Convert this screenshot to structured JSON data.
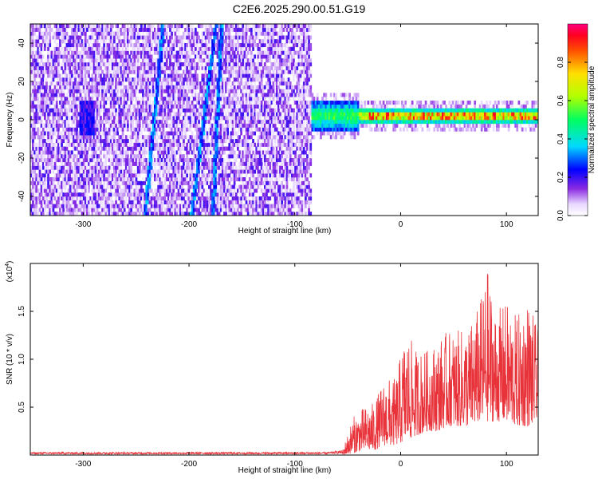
{
  "title": "C2E6.2025.290.00.51.G19",
  "chart_data": [
    {
      "type": "heatmap",
      "xlabel": "Height of straight line (km)",
      "ylabel": "Frequency (Hz)",
      "xlim": [
        -350,
        130
      ],
      "ylim": [
        -50,
        50
      ],
      "xticks": [
        -300,
        -200,
        -100,
        0,
        100
      ],
      "yticks": [
        -40,
        -20,
        0,
        20,
        40
      ],
      "grid": false,
      "colorbar": {
        "label": "Normalized spectral amplitude",
        "range": [
          0,
          1
        ],
        "ticks": [
          "0.0",
          "0.2",
          "0.4",
          "0.6",
          "0.8"
        ],
        "colormap": "rainbow (white-violet-blue-cyan-green-yellow-red-magenta)"
      },
      "features": {
        "noise_region_x": [
          -350,
          -85
        ],
        "signal_band_x": [
          -90,
          130
        ],
        "signal_center_hz": 1,
        "streaks": [
          {
            "x_at_bottom": -242,
            "x_at_top": -225
          },
          {
            "x_at_bottom": -198,
            "x_at_top": -175
          },
          {
            "x_at_bottom": -178,
            "x_at_top": -170
          }
        ]
      }
    },
    {
      "type": "line",
      "xlabel": "Height of straight line (km)",
      "ylabel": "SNR (10 * v/v)",
      "y_multiplier": "(x10^4)",
      "xlim": [
        -350,
        130
      ],
      "ylim": [
        0,
        2.0
      ],
      "xticks": [
        -300,
        -200,
        -100,
        0,
        100
      ],
      "yticks": [
        0.5,
        1.0,
        1.5
      ],
      "grid": false,
      "color": "#e8333a",
      "series": [
        {
          "x": [
            -350,
            -300,
            -250,
            -200,
            -150,
            -100,
            -70,
            -55,
            -45,
            -35,
            -25,
            -15,
            -5,
            5,
            15,
            25,
            35,
            45,
            55,
            65,
            75,
            82,
            90,
            100,
            110,
            120,
            130
          ],
          "y_envelope_max": [
            0.03,
            0.03,
            0.03,
            0.03,
            0.03,
            0.03,
            0.03,
            0.05,
            0.4,
            0.5,
            0.55,
            0.8,
            0.8,
            1.3,
            1.1,
            1.1,
            1.2,
            1.3,
            1.3,
            1.35,
            1.6,
            1.95,
            1.5,
            1.6,
            1.45,
            1.65,
            1.3
          ],
          "y_envelope_min": [
            0.0,
            0.0,
            0.0,
            0.0,
            0.0,
            0.0,
            0.0,
            0.0,
            0.02,
            0.05,
            0.05,
            0.1,
            0.1,
            0.15,
            0.2,
            0.25,
            0.25,
            0.3,
            0.3,
            0.3,
            0.35,
            0.35,
            0.35,
            0.35,
            0.3,
            0.3,
            0.35
          ]
        }
      ]
    }
  ]
}
